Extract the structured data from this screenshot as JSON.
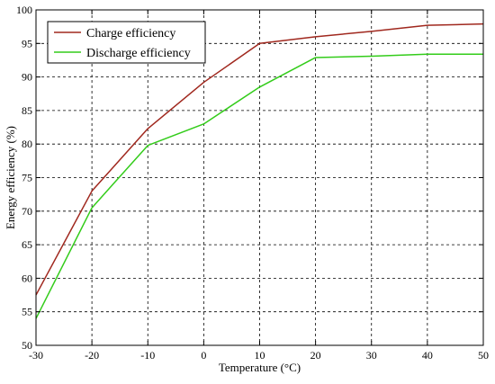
{
  "chart_data": {
    "type": "line",
    "xlabel": "Temperature (°C)",
    "ylabel": "Energy efficiency (%)",
    "xlim": [
      -30,
      50
    ],
    "ylim": [
      50,
      100
    ],
    "xticks": [
      -30,
      -20,
      -10,
      0,
      10,
      20,
      30,
      40,
      50
    ],
    "yticks": [
      50,
      55,
      60,
      65,
      70,
      75,
      80,
      85,
      90,
      95,
      100
    ],
    "xtick_labels": [
      "-30",
      "-20",
      "-10",
      "0",
      "10",
      "20",
      "30",
      "40",
      "50"
    ],
    "ytick_labels": [
      "50",
      "55",
      "60",
      "65",
      "70",
      "75",
      "80",
      "85",
      "90",
      "95",
      "100"
    ],
    "grid": true,
    "grid_style": "dashed",
    "legend_position": "top-left",
    "series": [
      {
        "name": "Charge efficiency",
        "color": "#a0281e",
        "x": [
          -30,
          -20,
          -10,
          0,
          10,
          20,
          30,
          40,
          50
        ],
        "y": [
          57.5,
          73,
          82.3,
          89.2,
          95,
          96,
          96.8,
          97.7,
          97.9
        ]
      },
      {
        "name": "Discharge efficiency",
        "color": "#33cc1a",
        "x": [
          -30,
          -20,
          -10,
          0,
          10,
          20,
          30,
          40,
          50
        ],
        "y": [
          54,
          70.5,
          79.8,
          83,
          88.5,
          92.9,
          93.1,
          93.4,
          93.4
        ]
      }
    ]
  }
}
